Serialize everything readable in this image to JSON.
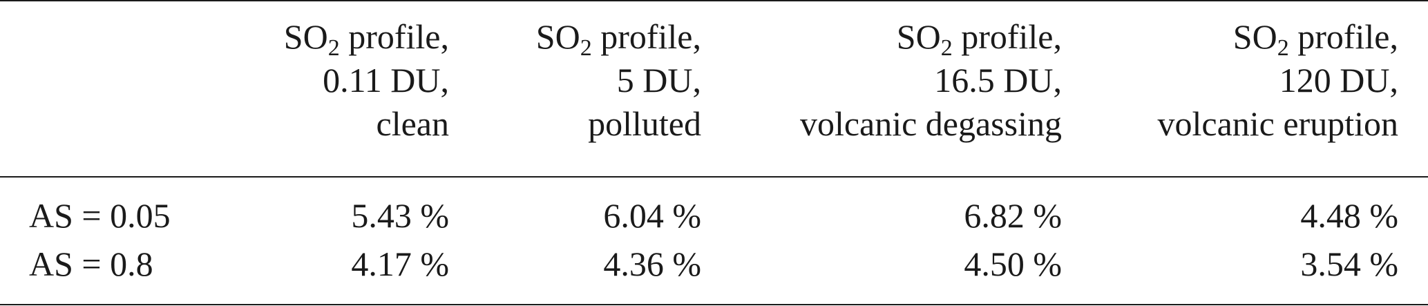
{
  "table": {
    "columns": [
      {
        "name_prefix": "SO",
        "name_sub": "2",
        "name_suffix": " profile,",
        "amount": "0.11 DU,",
        "scenario": "clean"
      },
      {
        "name_prefix": "SO",
        "name_sub": "2",
        "name_suffix": " profile,",
        "amount": "5 DU,",
        "scenario": "polluted"
      },
      {
        "name_prefix": "SO",
        "name_sub": "2",
        "name_suffix": " profile,",
        "amount": "16.5 DU,",
        "scenario": "volcanic degassing"
      },
      {
        "name_prefix": "SO",
        "name_sub": "2",
        "name_suffix": " profile,",
        "amount": "120 DU,",
        "scenario": "volcanic eruption"
      }
    ],
    "rows": [
      {
        "label": "AS = 0.05",
        "values": [
          "5.43 %",
          "6.04 %",
          "6.82 %",
          "4.48 %"
        ]
      },
      {
        "label": "AS = 0.8",
        "values": [
          "4.17 %",
          "4.36 %",
          "4.50 %",
          "3.54 %"
        ]
      }
    ]
  }
}
